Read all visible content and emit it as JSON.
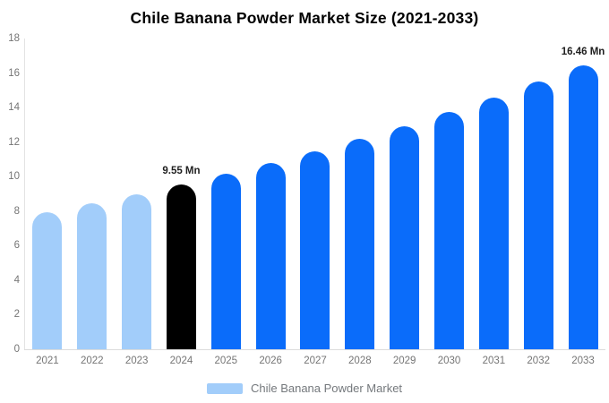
{
  "title": "Chile Banana Powder Market Size (2021-2033)",
  "legend": {
    "label": "Chile Banana Powder Market",
    "swatch_color": "#a2cdfa"
  },
  "colors": {
    "historical": "#a2cdfa",
    "base_year": "#000000",
    "forecast": "#0a6cfa",
    "axis_line": "#e3e3e3",
    "tick_label": "#757575",
    "annotation_text": "#1f1f1f",
    "legend_text": "#74787c",
    "title_text": "#000000",
    "background": "#ffffff"
  },
  "chart_data": {
    "type": "bar",
    "title": "Chile Banana Powder Market Size (2021-2033)",
    "xlabel": "",
    "ylabel": "",
    "unit": "Mn",
    "ylim": [
      0,
      18
    ],
    "y_ticks": [
      0,
      2,
      4,
      6,
      8,
      10,
      12,
      14,
      16,
      18
    ],
    "grid": false,
    "legend_position": "bottom",
    "categories": [
      "2021",
      "2022",
      "2023",
      "2024",
      "2025",
      "2026",
      "2027",
      "2028",
      "2029",
      "2030",
      "2031",
      "2032",
      "2033"
    ],
    "values": [
      7.96,
      8.46,
      8.99,
      9.55,
      10.15,
      10.78,
      11.45,
      12.17,
      12.93,
      13.73,
      14.59,
      15.5,
      16.46
    ],
    "annotations": [
      {
        "category": "2024",
        "text": "9.55 Mn"
      },
      {
        "category": "2033",
        "text": "16.46 Mn"
      }
    ],
    "bars": [
      {
        "year": "2021",
        "value": 7.96,
        "color": "#a2cdfa",
        "annotation": ""
      },
      {
        "year": "2022",
        "value": 8.46,
        "color": "#a2cdfa",
        "annotation": ""
      },
      {
        "year": "2023",
        "value": 8.99,
        "color": "#a2cdfa",
        "annotation": ""
      },
      {
        "year": "2024",
        "value": 9.55,
        "color": "#000000",
        "annotation": "9.55 Mn"
      },
      {
        "year": "2025",
        "value": 10.15,
        "color": "#0a6cfa",
        "annotation": ""
      },
      {
        "year": "2026",
        "value": 10.78,
        "color": "#0a6cfa",
        "annotation": ""
      },
      {
        "year": "2027",
        "value": 11.45,
        "color": "#0a6cfa",
        "annotation": ""
      },
      {
        "year": "2028",
        "value": 12.17,
        "color": "#0a6cfa",
        "annotation": ""
      },
      {
        "year": "2029",
        "value": 12.93,
        "color": "#0a6cfa",
        "annotation": ""
      },
      {
        "year": "2030",
        "value": 13.73,
        "color": "#0a6cfa",
        "annotation": ""
      },
      {
        "year": "2031",
        "value": 14.59,
        "color": "#0a6cfa",
        "annotation": ""
      },
      {
        "year": "2032",
        "value": 15.5,
        "color": "#0a6cfa",
        "annotation": ""
      },
      {
        "year": "2033",
        "value": 16.46,
        "color": "#0a6cfa",
        "annotation": "16.46 Mn"
      }
    ]
  }
}
